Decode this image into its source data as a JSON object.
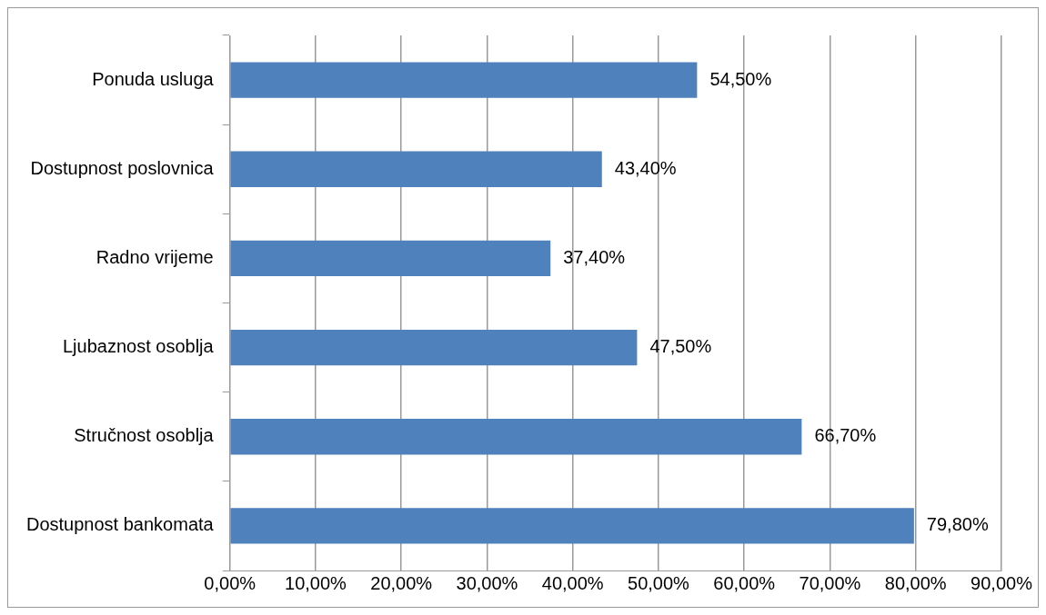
{
  "chart_data": {
    "type": "bar",
    "orientation": "horizontal",
    "categories": [
      "Ponuda usluga",
      "Dostupnost poslovnica",
      "Radno vrijeme",
      "Ljubaznost osoblja",
      "Stručnost osoblja",
      "Dostupnost bankomata"
    ],
    "values": [
      54.5,
      43.4,
      37.4,
      47.5,
      66.7,
      79.8
    ],
    "value_labels": [
      "54,50%",
      "43,40%",
      "37,40%",
      "47,50%",
      "66,70%",
      "79,80%"
    ],
    "color": "#4f81bd",
    "xlim": [
      0,
      90
    ],
    "xticks": [
      {
        "value": 0,
        "label": "0,00%"
      },
      {
        "value": 10,
        "label": "10,00%"
      },
      {
        "value": 20,
        "label": "20,00%"
      },
      {
        "value": 30,
        "label": "30,00%"
      },
      {
        "value": 40,
        "label": "40,00%"
      },
      {
        "value": 50,
        "label": "50,00%"
      },
      {
        "value": 60,
        "label": "60,00%"
      },
      {
        "value": 70,
        "label": "70,00%"
      },
      {
        "value": 80,
        "label": "80,00%"
      },
      {
        "value": 90,
        "label": "90,00%"
      }
    ],
    "grid": "x"
  }
}
